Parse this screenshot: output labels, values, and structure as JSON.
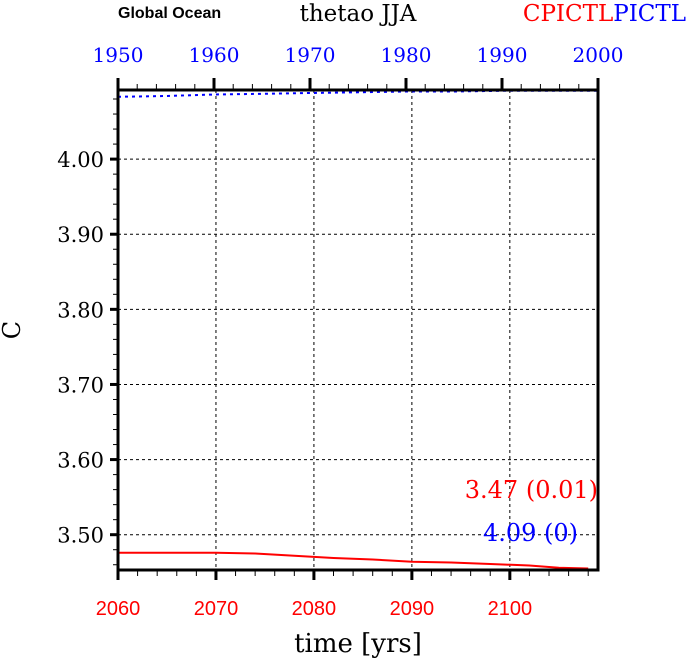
{
  "chart_data": {
    "type": "line",
    "title": "thetao JJA",
    "left_title": "Global Ocean",
    "right_title_parts": [
      {
        "text": "CPICTL",
        "color": "#ff0000"
      },
      {
        "text": "PICTL",
        "color": "#0000ff"
      }
    ],
    "xlabel": "time [yrs]",
    "ylabel": "C",
    "ylim": [
      3.453,
      4.092
    ],
    "yticks": [
      "3.50",
      "3.60",
      "3.70",
      "3.80",
      "3.90",
      "4.00"
    ],
    "grid": true,
    "x_bottom": {
      "range": [
        2060,
        2109
      ],
      "ticks": [
        "2060",
        "2070",
        "2080",
        "2090",
        "2100"
      ],
      "color": "#ff0000"
    },
    "x_top": {
      "range": [
        1950,
        2000
      ],
      "ticks": [
        "1950",
        "1960",
        "1970",
        "1980",
        "1990",
        "2000"
      ],
      "color": "#0000ff"
    },
    "series": [
      {
        "name": "CPICTL",
        "color": "#ff0000",
        "style": "solid",
        "axis": "bottom",
        "x": [
          2060,
          2063,
          2066,
          2070,
          2074,
          2078,
          2082,
          2086,
          2090,
          2094,
          2098,
          2102,
          2105,
          2108
        ],
        "y": [
          3.476,
          3.476,
          3.476,
          3.476,
          3.475,
          3.472,
          3.469,
          3.467,
          3.464,
          3.463,
          3.461,
          3.459,
          3.456,
          3.455
        ],
        "annotation": "3.47 (0.01)"
      },
      {
        "name": "PICTL",
        "color": "#0000ff",
        "style": "dotted",
        "axis": "top",
        "x": [
          1950,
          1955,
          1960,
          1965,
          1970,
          1975,
          1980,
          1985,
          1990,
          1995,
          2000
        ],
        "y": [
          4.083,
          4.084,
          4.086,
          4.087,
          4.088,
          4.089,
          4.09,
          4.09,
          4.091,
          4.091,
          4.091
        ],
        "annotation": "4.09 (0)"
      }
    ]
  }
}
